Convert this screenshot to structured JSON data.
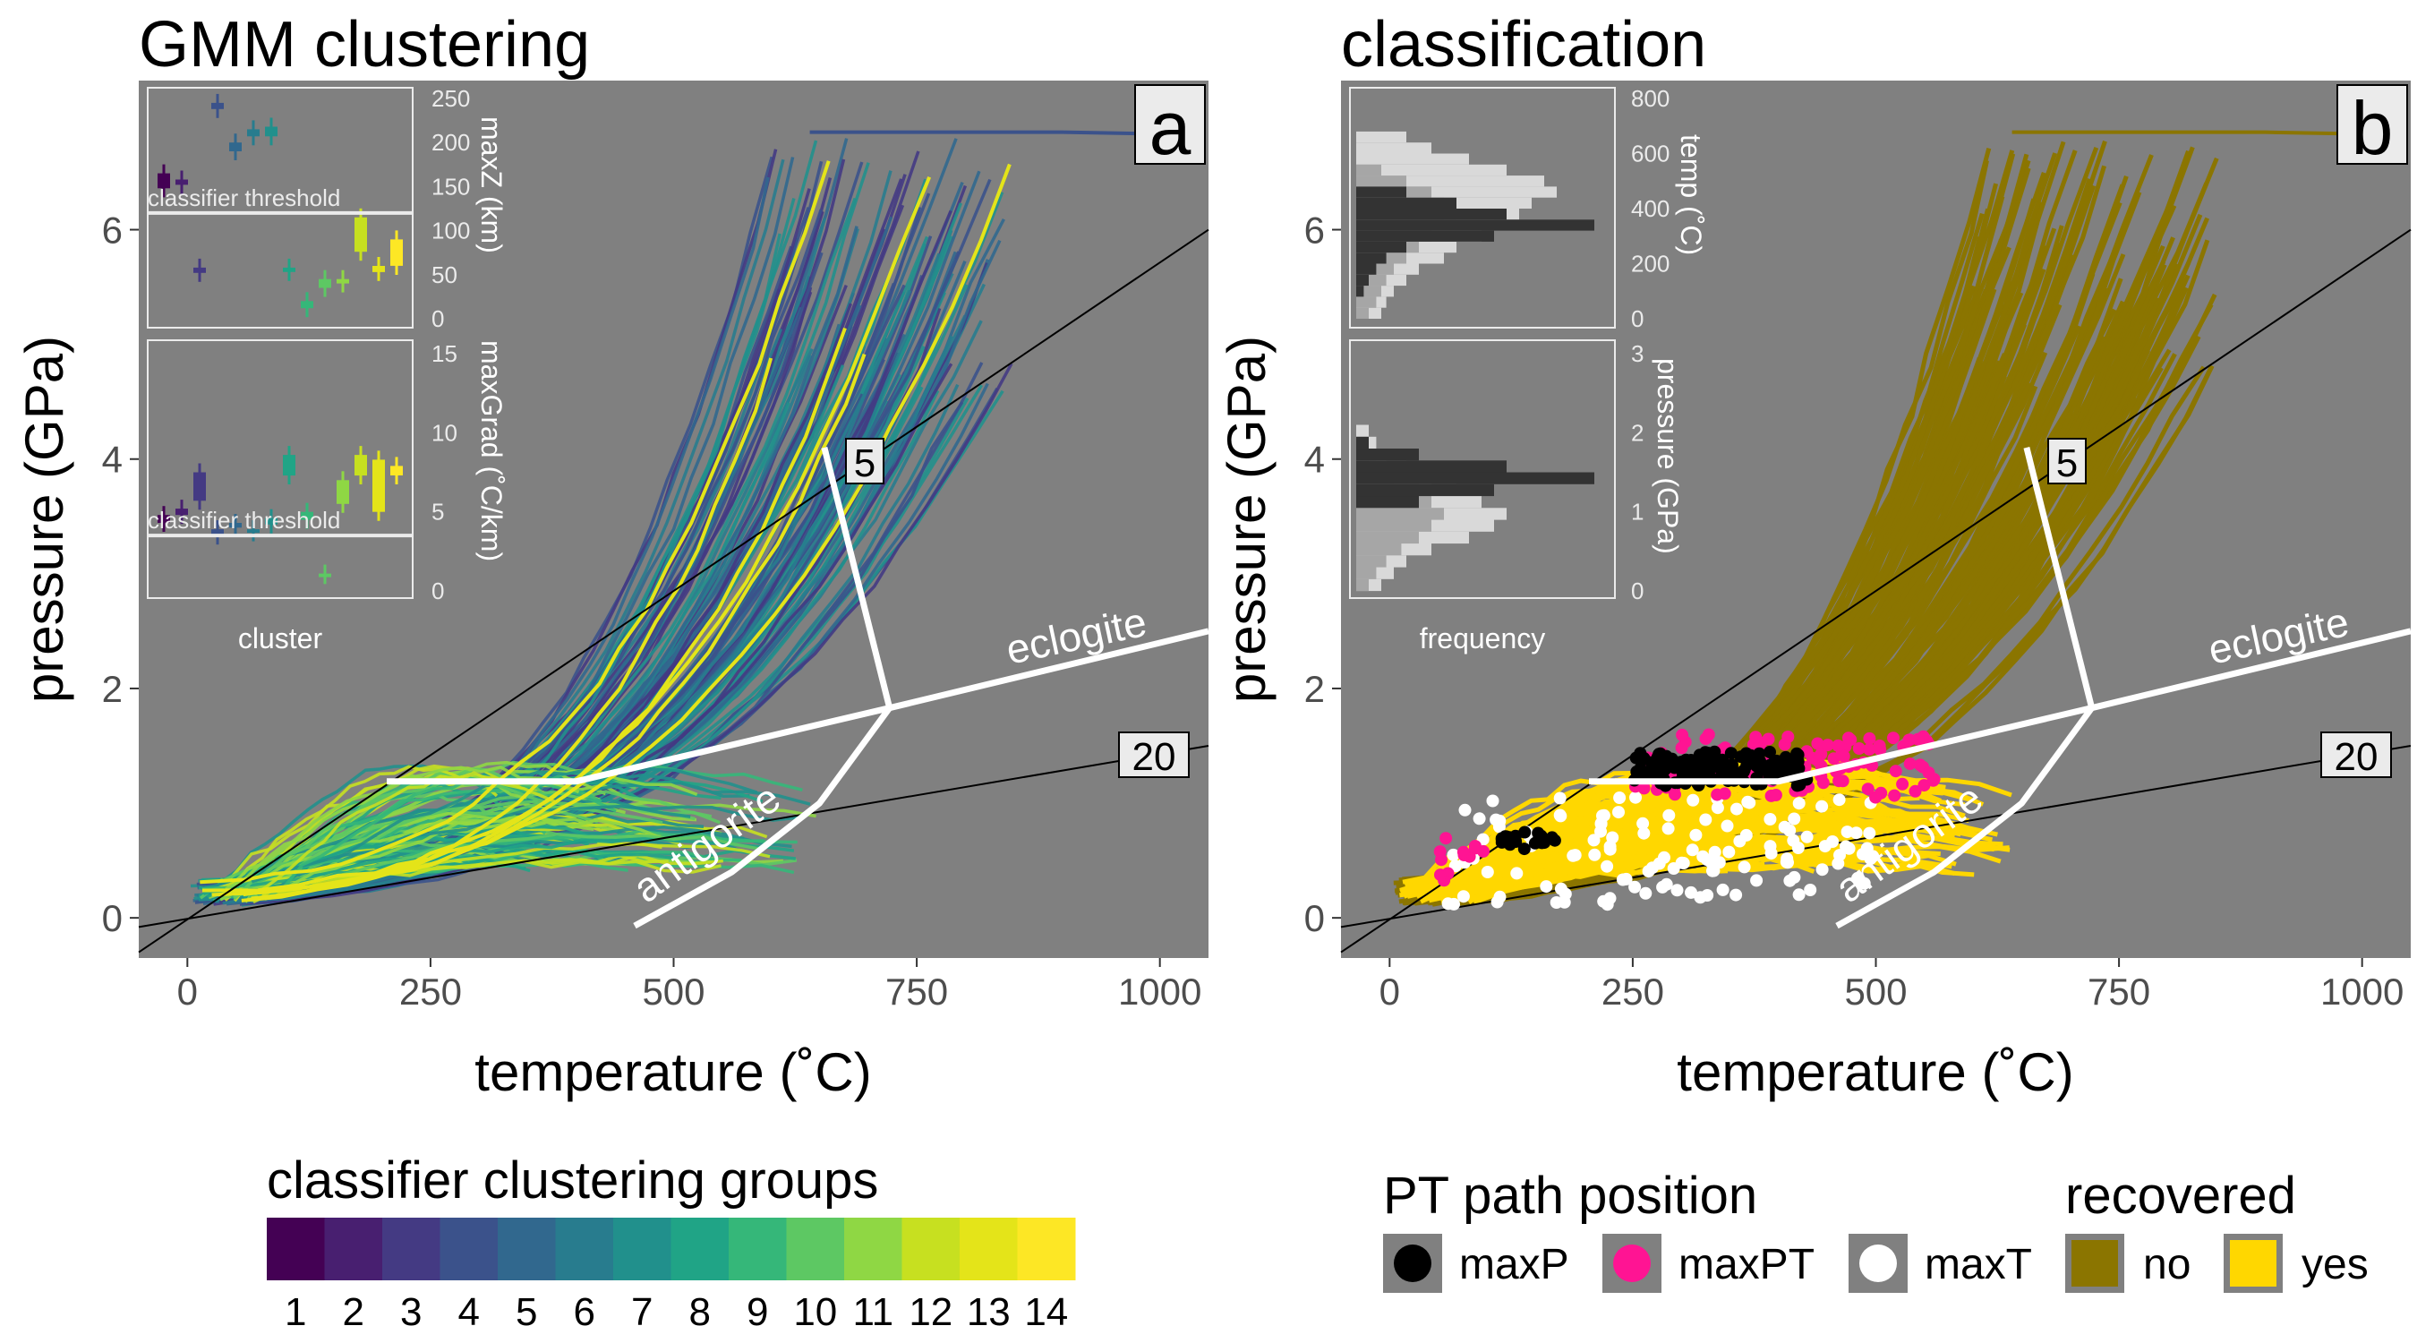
{
  "colors": {
    "panel_bg": "#808080",
    "inset_border": "#ebebeb",
    "viridis": [
      "#440154",
      "#481F70",
      "#443A83",
      "#3B528B",
      "#31688E",
      "#287C8E",
      "#21908C",
      "#20A486",
      "#35B779",
      "#5DC863",
      "#8FD744",
      "#C7E020",
      "#E4E419",
      "#FDE725"
    ],
    "recovered_no": "#8B7500",
    "recovered_yes": "#FFD700",
    "maxP": "#000000",
    "maxPT": "#FF1493",
    "maxT": "#FFFFFF"
  },
  "chart_data": [
    {
      "type": "line",
      "panel_letter": "a",
      "title": "GMM clustering",
      "xlabel": "temperature (˚C)",
      "ylabel": "pressure (GPa)",
      "xlim": [
        -50,
        1050
      ],
      "ylim": [
        -0.35,
        7.3
      ],
      "xticks": [
        0,
        250,
        500,
        750,
        1000
      ],
      "yticks": [
        0,
        2,
        4,
        6
      ],
      "grid": false,
      "reference_lines": [
        {
          "label": "5",
          "kind": "geotherm",
          "x": [
            -50,
            1050
          ],
          "y": [
            -0.3,
            6.0
          ]
        },
        {
          "label": "20",
          "kind": "geotherm",
          "x": [
            -50,
            1050
          ],
          "y": [
            -0.08,
            1.5
          ]
        }
      ],
      "phase_boundaries": [
        {
          "label": "eclogite",
          "x": [
            205,
            400,
            722,
            1050
          ],
          "y": [
            1.19,
            1.19,
            1.83,
            2.5
          ]
        },
        {
          "label": "antigorite",
          "x": [
            460,
            560,
            650,
            722
          ],
          "y": [
            -0.07,
            0.4,
            1.0,
            1.83
          ]
        },
        {
          "label": "",
          "x": [
            655,
            722
          ],
          "y": [
            4.1,
            1.83
          ]
        }
      ],
      "legend": {
        "title": "classifier clustering groups",
        "placement": "bottom",
        "entries": [
          "1",
          "2",
          "3",
          "4",
          "5",
          "6",
          "7",
          "8",
          "9",
          "10",
          "11",
          "12",
          "13",
          "14"
        ]
      },
      "insets": [
        {
          "name": "maxZ",
          "ylabel": "maxZ (km)",
          "yticks": [
            0,
            50,
            100,
            150,
            200,
            250
          ],
          "ylim": [
            0,
            250
          ],
          "threshold_label": "classifier threshold",
          "threshold": 120,
          "clusters": [
            1,
            2,
            3,
            4,
            5,
            6,
            7,
            8,
            9,
            10,
            11,
            12,
            13,
            14
          ],
          "box_low": [
            148,
            152,
            52,
            238,
            190,
            207,
            207,
            53,
            12,
            35,
            40,
            76,
            53,
            60
          ],
          "box_high": [
            165,
            158,
            58,
            245,
            200,
            215,
            218,
            58,
            20,
            45,
            45,
            115,
            60,
            90
          ]
        },
        {
          "name": "maxGrad",
          "ylabel": "maxGrad (˚C/km)",
          "yticks": [
            0,
            5,
            10,
            15
          ],
          "ylim": [
            0,
            15
          ],
          "threshold_label": "classifier threshold",
          "threshold": 3.5,
          "xlabel": "cluster",
          "clusters": [
            1,
            2,
            3,
            4,
            5,
            6,
            7,
            8,
            9,
            10,
            11,
            12,
            13,
            14
          ],
          "box_low": [
            4.3,
            4.8,
            5.7,
            3.5,
            4.0,
            3.7,
            4.2,
            7.3,
            4.5,
            1.0,
            5.5,
            7.3,
            5.0,
            7.3
          ],
          "box_high": [
            4.8,
            5.2,
            7.5,
            3.9,
            4.3,
            3.9,
            4.6,
            8.6,
            5.0,
            1.1,
            7.0,
            8.6,
            8.3,
            7.9
          ]
        }
      ]
    },
    {
      "type": "line",
      "panel_letter": "b",
      "title": "classification",
      "xlabel": "temperature (˚C)",
      "ylabel": "pressure (GPa)",
      "xlim": [
        -50,
        1050
      ],
      "ylim": [
        -0.35,
        7.3
      ],
      "xticks": [
        0,
        250,
        500,
        750,
        1000
      ],
      "yticks": [
        0,
        2,
        4,
        6
      ],
      "grid": false,
      "reference_lines": [
        {
          "label": "5",
          "kind": "geotherm",
          "x": [
            -50,
            1050
          ],
          "y": [
            -0.3,
            6.0
          ]
        },
        {
          "label": "20",
          "kind": "geotherm",
          "x": [
            -50,
            1050
          ],
          "y": [
            -0.08,
            1.5
          ]
        }
      ],
      "phase_boundaries": [
        {
          "label": "eclogite",
          "x": [
            205,
            400,
            722,
            1050
          ],
          "y": [
            1.19,
            1.19,
            1.83,
            2.5
          ]
        },
        {
          "label": "antigorite",
          "x": [
            460,
            560,
            650,
            722
          ],
          "y": [
            -0.07,
            0.4,
            1.0,
            1.83
          ]
        },
        {
          "label": "",
          "x": [
            655,
            722
          ],
          "y": [
            4.1,
            1.83
          ]
        }
      ],
      "series": [
        {
          "name": "no",
          "group": "recovered"
        },
        {
          "name": "yes",
          "group": "recovered"
        }
      ],
      "legend": {
        "placement": "bottom",
        "groups": [
          {
            "title": "PT path position",
            "entries": [
              "maxP",
              "maxPT",
              "maxT"
            ]
          },
          {
            "title": "recovered",
            "entries": [
              "no",
              "yes"
            ]
          }
        ]
      },
      "insets": [
        {
          "name": "temp",
          "ylabel": "temp (˚C)",
          "yticks": [
            0,
            200,
            400,
            600,
            800
          ],
          "ylim": [
            0,
            800
          ],
          "xlabel": "frequency"
        },
        {
          "name": "pressure",
          "ylabel": "pressure (GPa)",
          "yticks": [
            0,
            1,
            2,
            3
          ],
          "ylim": [
            0,
            3
          ]
        }
      ]
    }
  ]
}
